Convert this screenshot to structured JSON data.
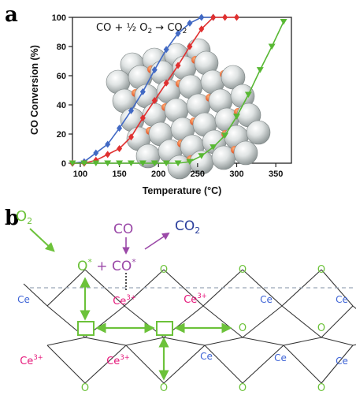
{
  "panels": {
    "a": "a",
    "b": "b"
  },
  "chart_data": {
    "type": "line",
    "title": "",
    "annotation": {
      "before": "CO + ½ O",
      "sub": "2",
      "arrow": " → CO",
      "sub2": "2"
    },
    "xlabel": "Temperature (°C)",
    "ylabel": "CO Conversion (%)",
    "xlim": [
      90,
      370
    ],
    "ylim": [
      0,
      100
    ],
    "xticks": [
      100,
      150,
      200,
      250,
      300,
      350
    ],
    "yticks": [
      0,
      20,
      40,
      60,
      80,
      100
    ],
    "grid": false,
    "legend": "none",
    "series": [
      {
        "color": "#4169c4",
        "marker": "diamond",
        "x": [
          90,
          105,
          120,
          135,
          150,
          165,
          180,
          195,
          210,
          225,
          240,
          255,
          270
        ],
        "y": [
          0,
          1,
          7,
          13,
          24,
          36,
          49,
          64,
          78,
          89,
          96,
          100,
          100
        ]
      },
      {
        "color": "#e03030",
        "marker": "diamond",
        "x": [
          90,
          105,
          120,
          135,
          150,
          165,
          180,
          195,
          210,
          225,
          240,
          255,
          270,
          285,
          300
        ],
        "y": [
          0,
          0,
          2,
          6,
          10,
          18,
          31,
          43,
          55,
          67,
          80,
          92,
          100,
          100,
          100
        ]
      },
      {
        "color": "#58b833",
        "marker": "triangle-down",
        "x": [
          90,
          105,
          120,
          135,
          150,
          165,
          180,
          195,
          210,
          225,
          240,
          255,
          270,
          285,
          300,
          315,
          330,
          345,
          360
        ],
        "y": [
          0,
          0,
          0,
          0,
          0,
          0,
          0,
          0,
          0,
          0,
          1,
          5,
          11,
          19,
          32,
          47,
          64,
          80,
          97
        ]
      }
    ]
  },
  "mechanism": {
    "o2": "O",
    "o2_sub": "2",
    "co": "CO",
    "co2": "CO",
    "co2_sub": "2",
    "o_ads": "O",
    "star": "*",
    "plus": " + ",
    "co_ads": "CO",
    "co_star": "*",
    "ce": "Ce",
    "ce3": "Ce",
    "ce3_sup": "3+",
    "o": "O",
    "colors": {
      "green": "#6cc23a",
      "purple": "#9b49a8",
      "blue": "#3d63d6",
      "pink": "#e5177a",
      "navy": "#2a3e9c"
    }
  }
}
